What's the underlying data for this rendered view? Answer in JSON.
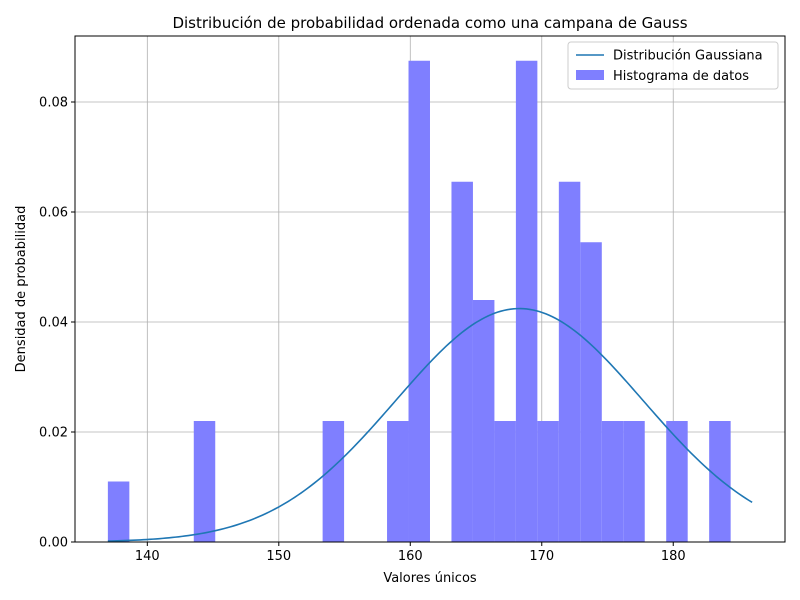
{
  "chart_data": {
    "type": "bar",
    "title": "Distribución de probabilidad ordenada como una campana de Gauss",
    "xlabel": "Valores únicos",
    "ylabel": "Densidad de probabilidad",
    "xlim": [
      134.5,
      188.5
    ],
    "ylim": [
      0.0,
      0.092
    ],
    "xticks": [
      140,
      150,
      160,
      170,
      180
    ],
    "yticks": [
      0.0,
      0.02,
      0.04,
      0.06,
      0.08
    ],
    "xtick_labels": [
      "140",
      "150",
      "160",
      "170",
      "180"
    ],
    "ytick_labels": [
      "0.00",
      "0.02",
      "0.04",
      "0.06",
      "0.08"
    ],
    "grid": true,
    "legend_position": "top-right",
    "histogram": {
      "name": "Histograma de datos",
      "color": "#7f7fff",
      "bin_start": 137,
      "bin_width": 1.6333,
      "values": [
        0.011,
        0,
        0,
        0,
        0.022,
        0,
        0,
        0,
        0,
        0,
        0.022,
        0,
        0,
        0.022,
        0.0875,
        0,
        0.0655,
        0.044,
        0.022,
        0.0875,
        0.022,
        0.0655,
        0.0545,
        0.022,
        0.022,
        0,
        0.022,
        0,
        0.022,
        0
      ]
    },
    "curve": {
      "name": "Distribución Gaussiana",
      "color": "#1f77b4",
      "mean": 168.3,
      "std": 9.4,
      "x_start": 137,
      "x_end": 186
    }
  }
}
